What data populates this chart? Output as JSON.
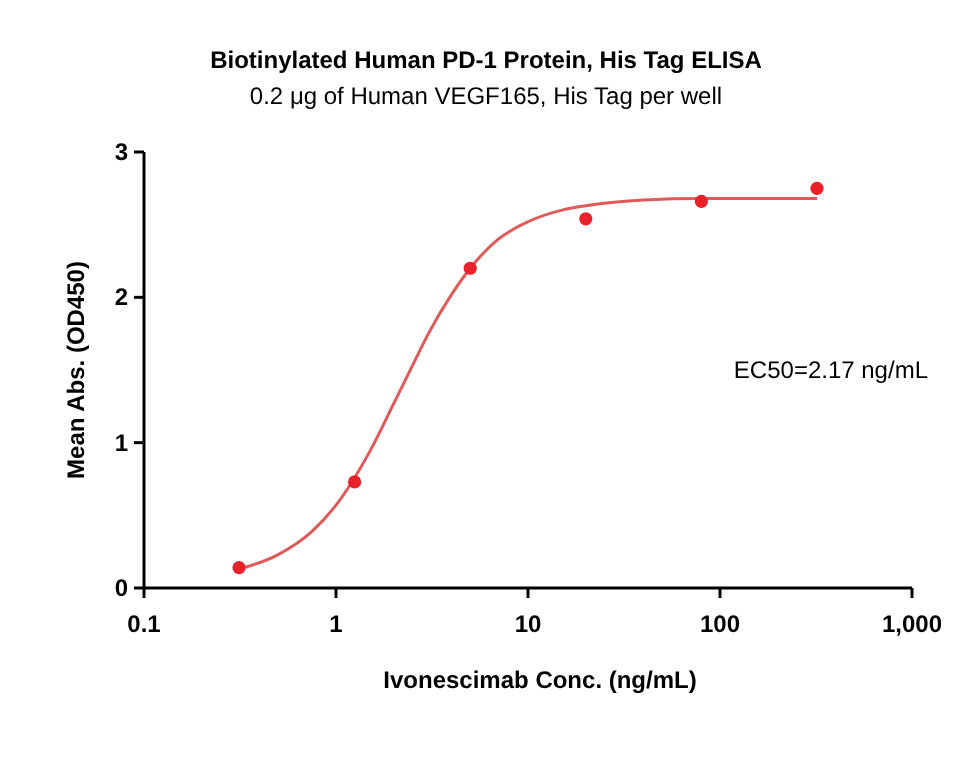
{
  "chart_data": {
    "type": "scatter",
    "title": "Biotinylated Human PD-1 Protein, His Tag ELISA",
    "subtitle": "0.2 μg of Human VEGF165, His Tag per well",
    "xlabel": "Ivonescimab Conc. (ng/mL)",
    "ylabel": "Mean Abs. (OD450)",
    "log": "x",
    "xlim": [
      0.1,
      1000
    ],
    "xticks": [
      0.1,
      1,
      10,
      100,
      {
        "value": 1000,
        "label": "1,000"
      }
    ],
    "ylim": [
      0,
      3
    ],
    "yticks": [
      0,
      1,
      2,
      3
    ],
    "grid": false,
    "annotations": [
      "EC50=2.17 ng/mL"
    ],
    "series": [
      {
        "color": "#e8212a",
        "marker": "circle",
        "x": [
          0.3125,
          1.25,
          5,
          20,
          80,
          320
        ],
        "values": [
          0.14,
          0.73,
          2.2,
          2.54,
          2.66,
          2.75
        ]
      },
      {
        "type": "line",
        "color": "#e05a5a",
        "marker": "none",
        "line_style": "solid",
        "x": [
          0.3125,
          0.5,
          0.75,
          1,
          1.5,
          2,
          2.5,
          3,
          4,
          5,
          7,
          10,
          15,
          20,
          40,
          80,
          160,
          320
        ],
        "values": [
          0.13,
          0.23,
          0.39,
          0.57,
          0.94,
          1.27,
          1.53,
          1.74,
          2.02,
          2.2,
          2.4,
          2.52,
          2.6,
          2.63,
          2.67,
          2.68,
          2.68,
          2.68
        ]
      }
    ]
  }
}
